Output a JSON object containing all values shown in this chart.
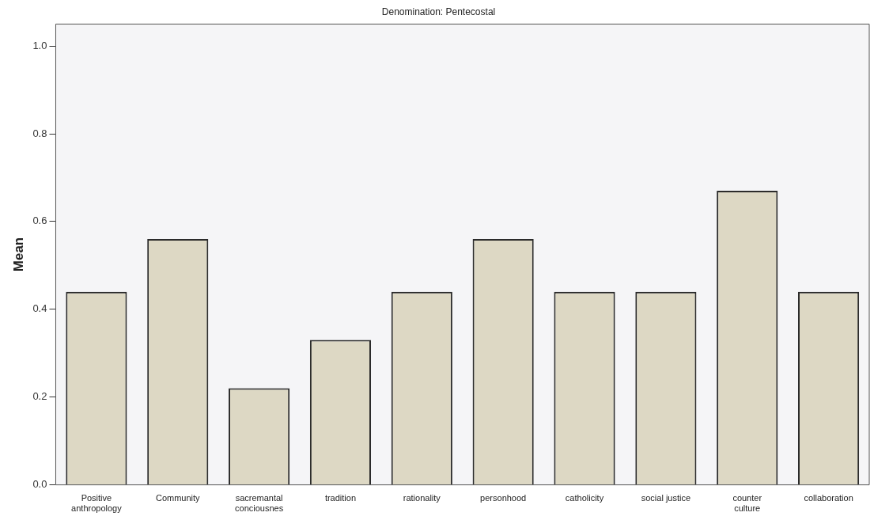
{
  "chart_data": {
    "type": "bar",
    "title": "Denomination: Pentecostal",
    "ylabel": "Mean",
    "categories": [
      "Positive\nanthropology",
      "Community",
      "sacremantal\nconciousnes",
      "tradition",
      "rationality",
      "personhood",
      "catholicity",
      "social justice",
      "counter\nculture",
      "collaboration"
    ],
    "values": [
      0.44,
      0.56,
      0.22,
      0.33,
      0.44,
      0.56,
      0.44,
      0.44,
      0.67,
      0.44
    ],
    "color": "#ddd8c4",
    "ylim": [
      0,
      1.05
    ],
    "yticks": [
      {
        "value": 0,
        "label": "0.0"
      },
      {
        "value": 0.2,
        "label": "0.2"
      },
      {
        "value": 0.4,
        "label": "0.4"
      },
      {
        "value": 0.6,
        "label": "0.6"
      },
      {
        "value": 0.8,
        "label": "0.8"
      },
      {
        "value": 1,
        "label": "1.0"
      }
    ],
    "grid": false,
    "legend": false
  }
}
